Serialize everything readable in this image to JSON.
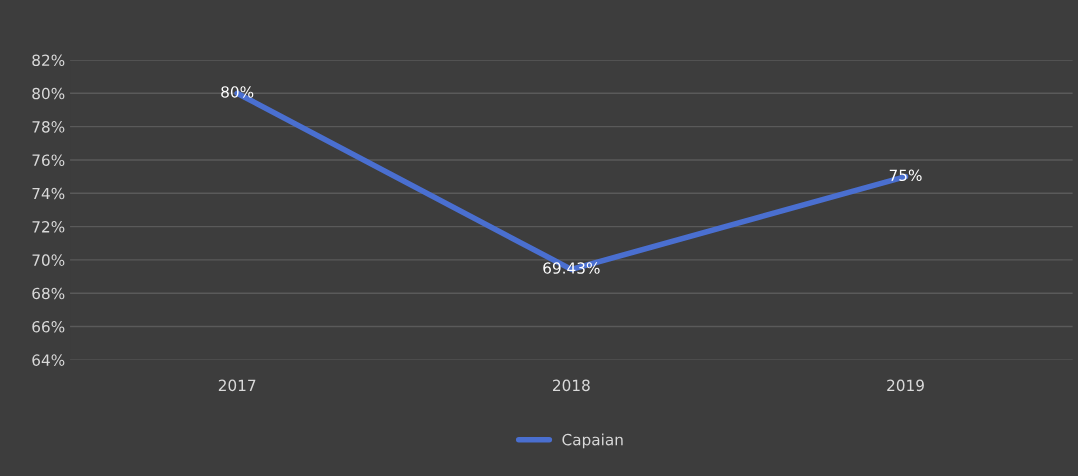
{
  "chart_data": {
    "type": "line",
    "categories": [
      "2017",
      "2018",
      "2019"
    ],
    "series": [
      {
        "name": "Capaian",
        "color": "#4a6fd0",
        "values": [
          80,
          69.43,
          75
        ],
        "value_labels": [
          "80%",
          "69.43%",
          "75%"
        ]
      }
    ],
    "ylim": [
      64,
      82
    ],
    "yticks": [
      {
        "value": 64,
        "label": "64%"
      },
      {
        "value": 66,
        "label": "66%"
      },
      {
        "value": 68,
        "label": "68%"
      },
      {
        "value": 70,
        "label": "70%"
      },
      {
        "value": 72,
        "label": "72%"
      },
      {
        "value": 74,
        "label": "74%"
      },
      {
        "value": 76,
        "label": "76%"
      },
      {
        "value": 78,
        "label": "78%"
      },
      {
        "value": 80,
        "label": "80%"
      },
      {
        "value": 82,
        "label": "82%"
      }
    ],
    "grid": "y",
    "legend": "bottom",
    "marker": "none",
    "line_style": "solid"
  }
}
